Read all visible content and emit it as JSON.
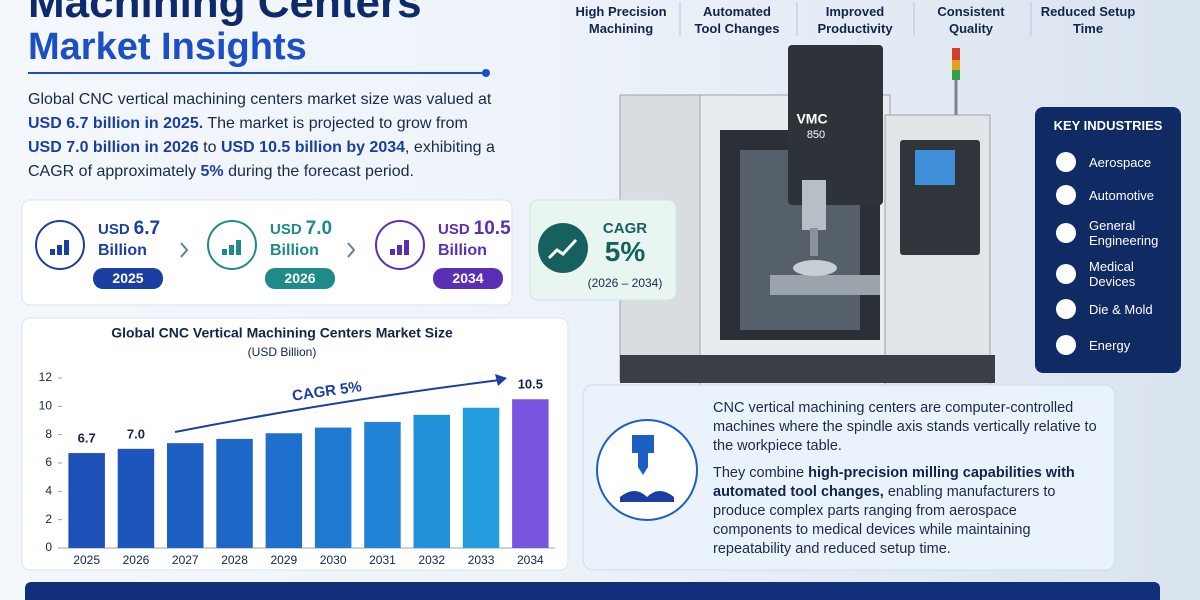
{
  "header": {
    "title": "Machining Centers",
    "subtitle": "Market Insights"
  },
  "intro": [
    {
      "text": "Global CNC vertical machining centers market size was valued at "
    },
    {
      "text": "USD 6.7 billion in 2025.",
      "bold": true
    },
    {
      "text": " The market is projected to grow from "
    },
    {
      "text": "USD 7.0 billion in 2026",
      "bold": true
    },
    {
      "text": " to "
    },
    {
      "text": "USD 10.5 billion by 2034",
      "bold": true
    },
    {
      "text": ", exhibiting a CAGR of approximately "
    },
    {
      "text": "5%",
      "bold": true
    },
    {
      "text": " during the forecast period."
    }
  ],
  "features": [
    {
      "lines": [
        "High Precision",
        "Machining"
      ]
    },
    {
      "lines": [
        "Automated",
        "Tool Changes"
      ]
    },
    {
      "lines": [
        "Improved",
        "Productivity"
      ]
    },
    {
      "lines": [
        "Consistent",
        "Quality"
      ]
    },
    {
      "lines": [
        "Reduced Setup",
        "Time"
      ]
    }
  ],
  "stats": [
    {
      "prefix": "USD",
      "value": "6.7",
      "unit": "Billion",
      "year": "2025",
      "color": "#1a3fa0"
    },
    {
      "prefix": "USD",
      "value": "7.0",
      "unit": "Billion",
      "year": "2026",
      "color": "#1f8a8a"
    },
    {
      "prefix": "USD",
      "value": "10.5",
      "unit": "Billion",
      "year": "2034",
      "color": "#5b2fb5"
    }
  ],
  "cagr": {
    "label": "CAGR",
    "value": "5%",
    "period": "(2026 – 2034)"
  },
  "chart_data": {
    "type": "bar",
    "title": "Global CNC Vertical Machining Centers Market Size",
    "subtitle": "(USD Billion)",
    "annotation": "CAGR 5%",
    "categories": [
      "2025",
      "2026",
      "2027",
      "2028",
      "2029",
      "2030",
      "2031",
      "2032",
      "2033",
      "2034"
    ],
    "values": [
      6.7,
      7.0,
      7.4,
      7.7,
      8.1,
      8.5,
      8.9,
      9.4,
      9.9,
      10.5
    ],
    "value_labels": [
      "6.7",
      "7.0",
      null,
      null,
      null,
      null,
      null,
      null,
      null,
      "10.5"
    ],
    "colors": [
      "#1c4fb8",
      "#1c56bd",
      "#1d5ec3",
      "#1e67c8",
      "#1f70cd",
      "#207ad2",
      "#2184d6",
      "#2390da",
      "#259cde",
      "#7a55e0"
    ],
    "ylim": [
      0,
      12
    ],
    "yticks": [
      0,
      2,
      4,
      6,
      8,
      10,
      12
    ]
  },
  "machine": {
    "label": "VMC",
    "model": "850"
  },
  "industries": {
    "title": "KEY INDUSTRIES",
    "items": [
      {
        "lines": [
          "Aerospace"
        ]
      },
      {
        "lines": [
          "Automotive"
        ]
      },
      {
        "lines": [
          "General",
          "Engineering"
        ]
      },
      {
        "lines": [
          "Medical",
          "Devices"
        ]
      },
      {
        "lines": [
          "Die & Mold"
        ]
      },
      {
        "lines": [
          "Energy"
        ]
      }
    ]
  },
  "description": [
    [
      {
        "text": "CNC vertical machining centers are computer-controlled machines where the spindle axis stands vertically relative to the workpiece table."
      }
    ],
    [
      {
        "text": "They combine "
      },
      {
        "text": "high-precision milling capabilities with automated tool changes,",
        "bold": true
      },
      {
        "text": " enabling manufacturers to produce complex parts ranging from aerospace components to medical devices while maintaining repeatability and reduced setup time."
      }
    ]
  ]
}
